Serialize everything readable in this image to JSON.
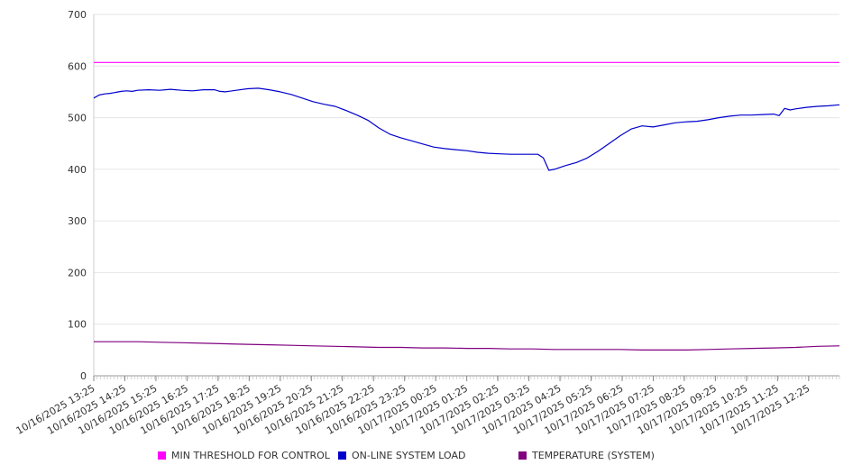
{
  "chart_data": {
    "type": "line",
    "title": "",
    "xlabel": "",
    "ylabel": "",
    "ylim": [
      0,
      700
    ],
    "yticks": [
      0,
      100,
      200,
      300,
      400,
      500,
      600,
      700
    ],
    "x_labels": [
      "10/16/2025 13:25",
      "10/16/2025 14:25",
      "10/16/2025 15:25",
      "10/16/2025 16:25",
      "10/16/2025 17:25",
      "10/16/2025 18:25",
      "10/16/2025 19:25",
      "10/16/2025 20:25",
      "10/16/2025 21:25",
      "10/16/2025 22:25",
      "10/16/2025 23:25",
      "10/17/2025 00:25",
      "10/17/2025 01:25",
      "10/17/2025 02:25",
      "10/17/2025 03:25",
      "10/17/2025 04:25",
      "10/17/2025 05:25",
      "10/17/2025 06:25",
      "10/17/2025 07:25",
      "10/17/2025 08:25",
      "10/17/2025 09:25",
      "10/17/2025 10:25",
      "10/17/2025 11:25",
      "10/17/2025 12:25"
    ],
    "x_start_hours": 0,
    "x_end_hours": 24,
    "grid": true,
    "legend_position": "bottom",
    "series": [
      {
        "name": "MIN THRESHOLD FOR CONTROL",
        "color": "#ff00ff",
        "points": [
          [
            0,
            607
          ],
          [
            24,
            607
          ]
        ]
      },
      {
        "name": "ON-LINE SYSTEM LOAD",
        "color": "#0000cc",
        "points": [
          [
            0,
            538
          ],
          [
            0.25,
            544
          ],
          [
            0.5,
            546
          ],
          [
            0.75,
            547
          ],
          [
            1.0,
            549
          ],
          [
            1.25,
            551
          ],
          [
            1.5,
            552
          ],
          [
            1.75,
            551
          ],
          [
            2.0,
            553
          ],
          [
            2.5,
            554
          ],
          [
            3.0,
            553
          ],
          [
            3.5,
            555
          ],
          [
            4.0,
            553
          ],
          [
            4.5,
            552
          ],
          [
            5.0,
            554
          ],
          [
            5.5,
            554
          ],
          [
            5.75,
            551
          ],
          [
            6.0,
            550
          ],
          [
            6.5,
            553
          ],
          [
            7.0,
            556
          ],
          [
            7.5,
            557
          ],
          [
            8.0,
            554
          ],
          [
            8.5,
            550
          ],
          [
            9.0,
            545
          ],
          [
            9.5,
            538
          ],
          [
            10.0,
            531
          ],
          [
            10.5,
            526
          ],
          [
            11.0,
            522
          ],
          [
            11.5,
            514
          ],
          [
            12.0,
            505
          ],
          [
            12.5,
            495
          ],
          [
            13.0,
            480
          ],
          [
            13.5,
            468
          ],
          [
            14.0,
            461
          ],
          [
            14.5,
            455
          ],
          [
            15.0,
            449
          ],
          [
            15.5,
            443
          ],
          [
            16.0,
            440
          ],
          [
            16.5,
            438
          ],
          [
            17.0,
            436
          ],
          [
            17.5,
            433
          ],
          [
            18.0,
            431
          ],
          [
            18.5,
            430
          ],
          [
            19.0,
            429
          ],
          [
            19.5,
            429
          ],
          [
            20.0,
            429
          ],
          [
            20.25,
            429
          ],
          [
            20.5,
            422
          ],
          [
            20.75,
            398
          ],
          [
            21.0,
            400
          ],
          [
            21.5,
            407
          ],
          [
            22.0,
            413
          ],
          [
            22.5,
            422
          ],
          [
            23.0,
            435
          ],
          [
            23.5,
            450
          ],
          [
            24.0,
            465
          ],
          [
            24.5,
            478
          ],
          [
            25.0,
            484
          ],
          [
            25.5,
            482
          ],
          [
            26.0,
            486
          ],
          [
            26.5,
            490
          ],
          [
            27.0,
            492
          ],
          [
            27.5,
            493
          ],
          [
            28.0,
            496
          ],
          [
            28.5,
            500
          ],
          [
            29.0,
            503
          ],
          [
            29.5,
            505
          ],
          [
            30.0,
            505
          ],
          [
            30.5,
            506
          ],
          [
            31.0,
            507
          ],
          [
            31.25,
            504
          ],
          [
            31.5,
            518
          ],
          [
            31.75,
            515
          ],
          [
            32.0,
            517
          ],
          [
            32.5,
            520
          ],
          [
            33.0,
            522
          ],
          [
            33.5,
            523
          ],
          [
            34.0,
            525
          ]
        ],
        "x_scale_max": 34
      },
      {
        "name": "TEMPERATURE (SYSTEM)",
        "color": "#800080",
        "points": [
          [
            0,
            66
          ],
          [
            1,
            66
          ],
          [
            2,
            66
          ],
          [
            3,
            65
          ],
          [
            4,
            64
          ],
          [
            5,
            63
          ],
          [
            6,
            62
          ],
          [
            7,
            61
          ],
          [
            8,
            60
          ],
          [
            9,
            59
          ],
          [
            10,
            58
          ],
          [
            11,
            57
          ],
          [
            12,
            56
          ],
          [
            13,
            55
          ],
          [
            14,
            55
          ],
          [
            15,
            54
          ],
          [
            16,
            54
          ],
          [
            17,
            53
          ],
          [
            18,
            53
          ],
          [
            19,
            52
          ],
          [
            20,
            52
          ],
          [
            21,
            51
          ],
          [
            22,
            51
          ],
          [
            23,
            51
          ],
          [
            24,
            51
          ],
          [
            25,
            50
          ],
          [
            26,
            50
          ],
          [
            27,
            50
          ],
          [
            28,
            51
          ],
          [
            29,
            52
          ],
          [
            30,
            53
          ],
          [
            31,
            54
          ],
          [
            32,
            55
          ],
          [
            33,
            57
          ],
          [
            34,
            58
          ]
        ],
        "x_scale_max": 34
      }
    ]
  }
}
